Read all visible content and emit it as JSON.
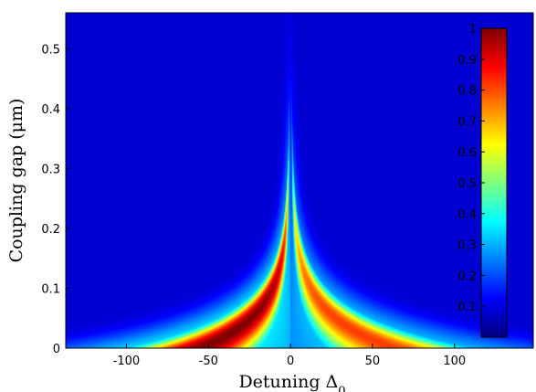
{
  "chart_data": {
    "type": "heatmap",
    "title": "",
    "xlabel": "Detuning Δ",
    "xlabel_subscript": "0",
    "ylabel": "Coupling gap (μm)",
    "xlim": [
      -137,
      148
    ],
    "ylim": [
      0,
      0.56
    ],
    "xticks": [
      "-100",
      "-50",
      "0",
      "50",
      "100"
    ],
    "xtick_values": [
      -100,
      -50,
      0,
      50,
      100
    ],
    "yticks": [
      "0",
      "0.1",
      "0.2",
      "0.3",
      "0.4",
      "0.5"
    ],
    "ytick_values": [
      0,
      0.1,
      0.2,
      0.3,
      0.4,
      0.5
    ],
    "colormap": "jet",
    "colorbar": {
      "range": [
        0,
        1
      ],
      "ticks": [
        "0.1",
        "0.2",
        "0.3",
        "0.4",
        "0.5",
        "0.6",
        "0.7",
        "0.8",
        "0.9",
        "1"
      ],
      "tick_values": [
        0.1,
        0.2,
        0.3,
        0.4,
        0.5,
        0.6,
        0.7,
        0.8,
        0.9,
        1
      ],
      "placement": "inside-right"
    },
    "grid": false,
    "features": {
      "red_lobe_side": "negative detuning",
      "peak_value": 1.0,
      "peak_detuning_at_gap_0": -70,
      "cusp_detuning": 0,
      "cusp_gap": 0.4
    }
  }
}
